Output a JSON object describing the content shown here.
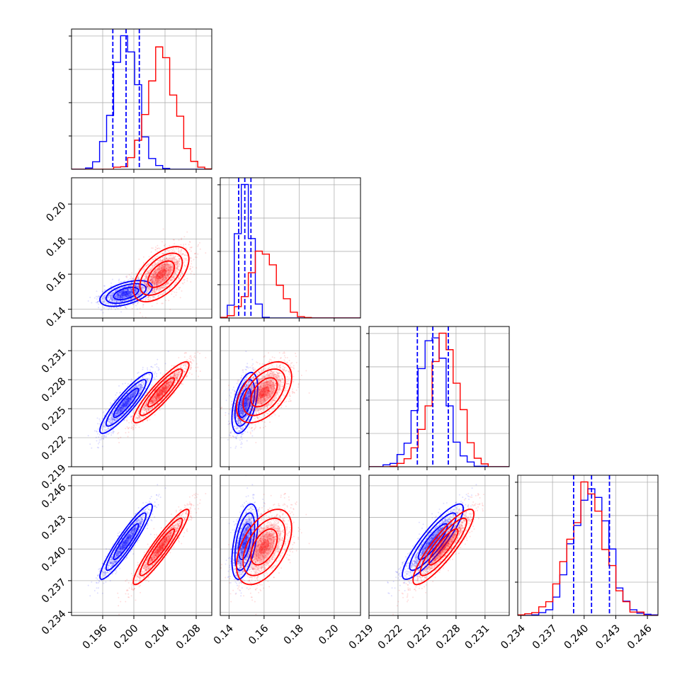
{
  "chart_data": {
    "type": "corner",
    "grid": true,
    "parameters": [
      {
        "range": [
          0.192,
          0.21
        ],
        "ticks": [
          0.196,
          0.2,
          0.204,
          0.208
        ],
        "tick_labels": [
          "0.196",
          "0.200",
          "0.204",
          "0.208"
        ]
      },
      {
        "range": [
          0.135,
          0.215
        ],
        "ticks": [
          0.14,
          0.16,
          0.18,
          0.2
        ],
        "tick_labels": [
          "0.14",
          "0.16",
          "0.18",
          "0.20"
        ]
      },
      {
        "range": [
          0.219,
          0.2335
        ],
        "ticks": [
          0.219,
          0.222,
          0.225,
          0.228,
          0.231
        ],
        "tick_labels": [
          "0.219",
          "0.222",
          "0.225",
          "0.228",
          "0.231"
        ]
      },
      {
        "range": [
          0.2337,
          0.247
        ],
        "ticks": [
          0.234,
          0.237,
          0.24,
          0.243,
          0.246
        ],
        "tick_labels": [
          "0.234",
          "0.237",
          "0.240",
          "0.243",
          "0.246"
        ]
      }
    ],
    "series": [
      {
        "color": "#0000ff",
        "mean": [
          0.199,
          0.149,
          0.2256,
          0.2407
        ],
        "std": [
          0.0016,
          0.0035,
          0.0015,
          0.0017
        ],
        "corr": [
          [
            1,
            0.5,
            0.9,
            0.93
          ],
          [
            0.5,
            1,
            0.5,
            0.5
          ],
          [
            0.9,
            0.5,
            1,
            0.88
          ],
          [
            0.93,
            0.5,
            0.88,
            1
          ]
        ],
        "quantiles": [
          [
            0.1973,
            0.199,
            0.2007
          ],
          [
            0.1455,
            0.149,
            0.1525
          ],
          [
            0.224,
            0.2256,
            0.2272
          ],
          [
            0.239,
            0.2407,
            0.2424
          ]
        ]
      },
      {
        "color": "#ff0000",
        "mean": [
          0.2035,
          0.16,
          0.2267,
          0.2402
        ],
        "std": [
          0.0017,
          0.0075,
          0.0015,
          0.0017
        ],
        "corr": [
          [
            1,
            0.55,
            0.9,
            0.93
          ],
          [
            0.55,
            1,
            0.5,
            0.5
          ],
          [
            0.9,
            0.5,
            1,
            0.88
          ],
          [
            0.93,
            0.5,
            0.88,
            1
          ]
        ]
      }
    ]
  }
}
